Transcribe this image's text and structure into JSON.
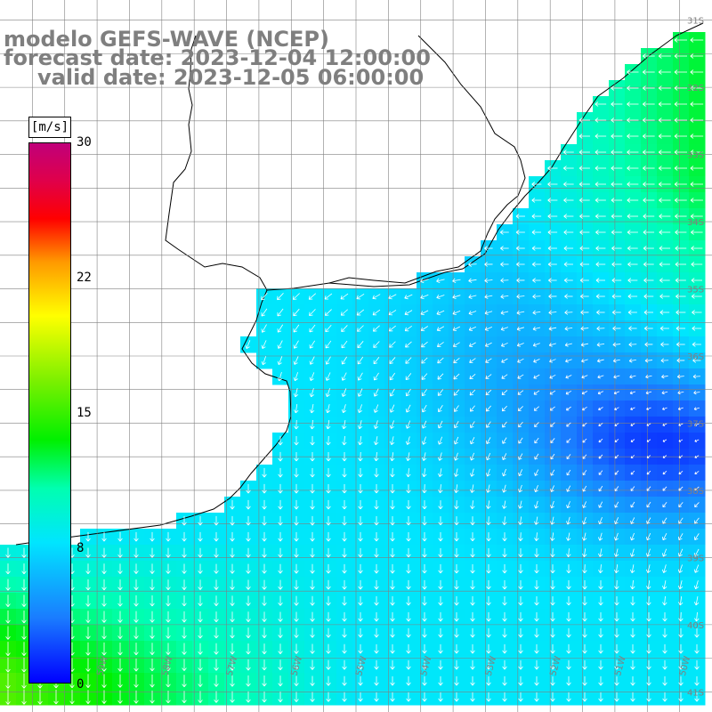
{
  "title": {
    "line1": "modelo GEFS-WAVE (NCEP)",
    "line2": "forecast date: 2023-12-04 12:00:00",
    "line3": "valid date: 2023-12-05 06:00:00"
  },
  "colorbar": {
    "unit": "[m/s]",
    "ticks": [
      {
        "label": "30",
        "value": 30
      },
      {
        "label": "22",
        "value": 22
      },
      {
        "label": "15",
        "value": 15
      },
      {
        "label": "8",
        "value": 8
      },
      {
        "label": "0",
        "value": 0
      }
    ]
  },
  "axes": {
    "lat_labels": [
      "31S",
      "32S",
      "33S",
      "34S",
      "35S",
      "36S",
      "37S",
      "38S",
      "39S",
      "40S",
      "41S"
    ],
    "lon_labels": [
      "60W",
      "59W",
      "58W",
      "57W",
      "56W",
      "55W",
      "54W",
      "53W",
      "52W",
      "51W",
      "50W"
    ],
    "lat_range": [
      -41.3,
      -30.7
    ],
    "lon_range": [
      -60.5,
      -49.5
    ]
  },
  "colors": {
    "land": "#ffffff",
    "grid": "#808080",
    "coast": "#000000",
    "arrows": "#ffffff",
    "title": "#7f7f7f"
  }
}
